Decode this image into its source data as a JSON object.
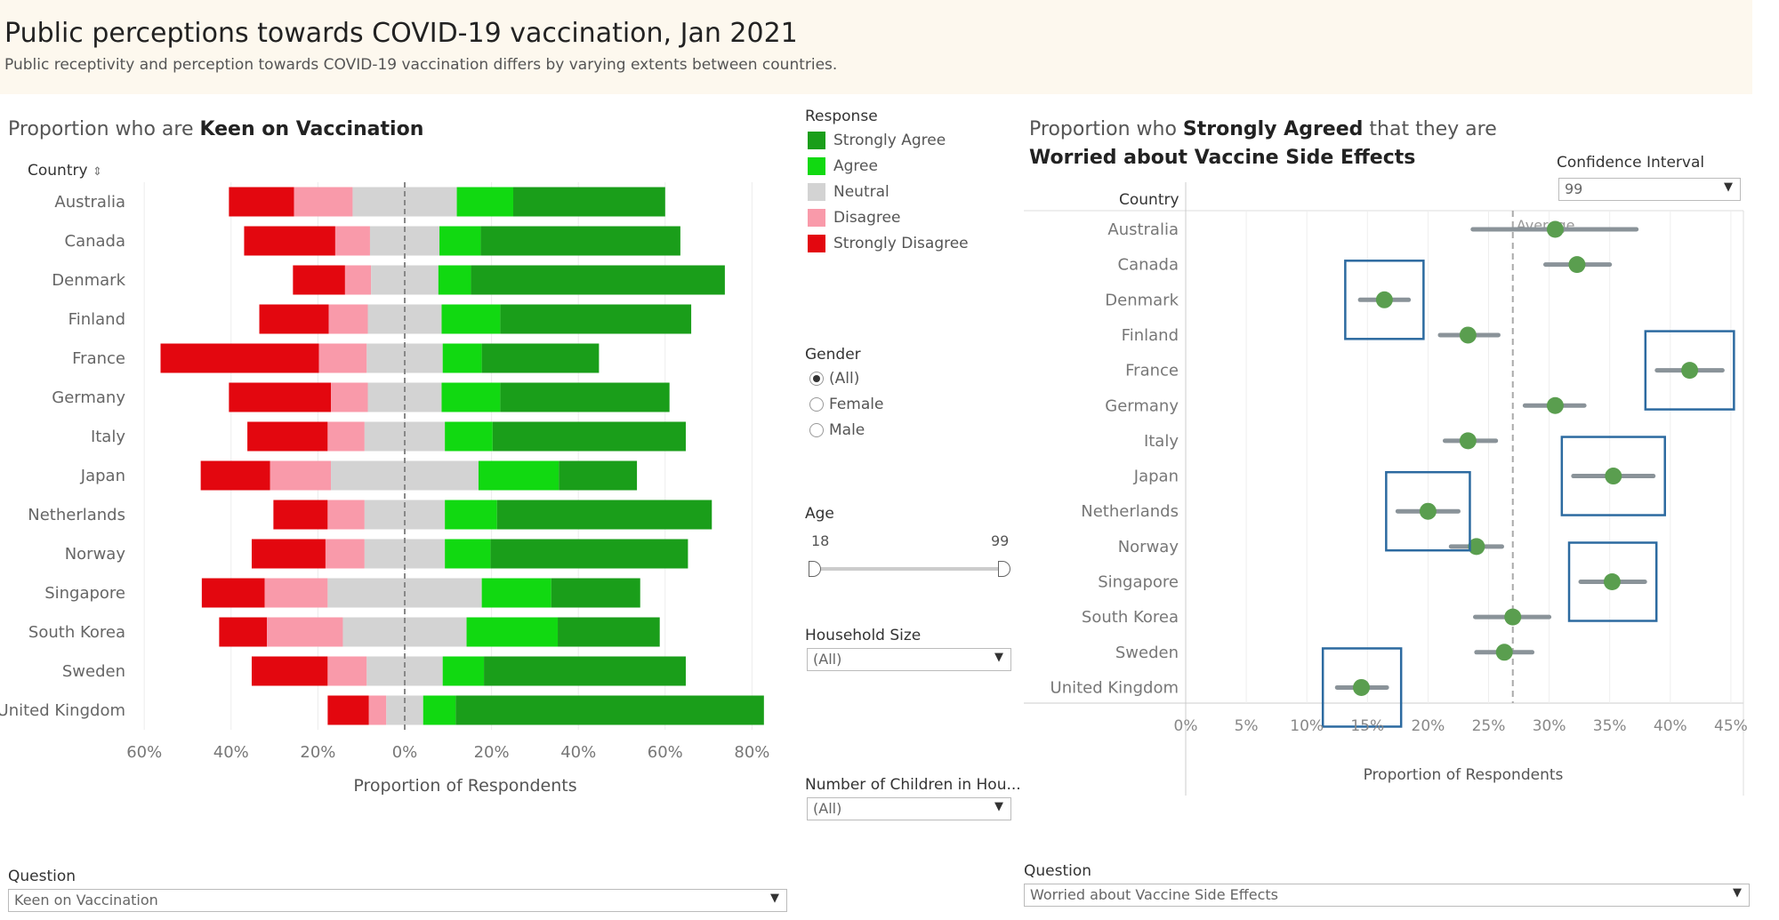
{
  "header": {
    "title": "Public perceptions towards COVID-19 vaccination, Jan 2021",
    "subtitle": "Public receptivity and perception towards COVID-19 vaccination differs by varying extents between countries."
  },
  "left_panel": {
    "title_prefix": "Proportion who are ",
    "title_bold": "Keen on Vaccination",
    "country_header": "Country",
    "sort_icon": "sort-icon",
    "question_label": "Question",
    "question_value": "Keen on Vaccination"
  },
  "filters": {
    "response_label": "Response",
    "gender_label": "Gender",
    "gender_options": [
      "(All)",
      "Female",
      "Male"
    ],
    "gender_selected": "(All)",
    "age_label": "Age",
    "age_min": "18",
    "age_max": "99",
    "household_label": "Household Size",
    "household_value": "(All)",
    "children_label": "Number of Children in Hou...",
    "children_value": "(All)"
  },
  "right_panel": {
    "title_prefix": "Proportion who ",
    "title_bold1": "Strongly Agreed",
    "title_mid": " that they are",
    "title_bold2": "Worried about Vaccine Side Effects",
    "ci_label": "Confidence Interval",
    "ci_value": "99",
    "country_header": "Country",
    "question_label": "Question",
    "question_value": "Worried about Vaccine Side Effects"
  },
  "chart_data": [
    {
      "type": "bar",
      "subtype": "diverging-stacked",
      "title": "Proportion who are Keen on Vaccination",
      "xlabel": "Proportion of Respondents",
      "ylabel": "Country",
      "xlim": [
        -0.6,
        0.8
      ],
      "tick_values": [
        -0.6,
        -0.4,
        -0.2,
        0,
        0.2,
        0.4,
        0.6,
        0.8
      ],
      "tick_labels": [
        "60%",
        "40%",
        "20%",
        "0%",
        "20%",
        "40%",
        "60%",
        "80%"
      ],
      "legend_title": "Response",
      "legend_position": "right",
      "series_colors": {
        "Strongly Agree": "#1a9e1a",
        "Agree": "#11d911",
        "Neutral": "#d3d3d3",
        "Disagree": "#f99aaa",
        "Strongly Disagree": "#e3070f"
      },
      "legend_order": [
        "Strongly Agree",
        "Agree",
        "Neutral",
        "Disagree",
        "Strongly Disagree"
      ],
      "categories": [
        "Australia",
        "Canada",
        "Denmark",
        "Finland",
        "France",
        "Germany",
        "Italy",
        "Japan",
        "Netherlands",
        "Norway",
        "Singapore",
        "South Korea",
        "Sweden",
        "United Kingdom"
      ],
      "series": [
        {
          "name": "Strongly Disagree",
          "values": [
            0.15,
            0.21,
            0.12,
            0.16,
            0.365,
            0.235,
            0.185,
            0.16,
            0.125,
            0.17,
            0.145,
            0.11,
            0.175,
            0.095
          ]
        },
        {
          "name": "Disagree",
          "values": [
            0.135,
            0.08,
            0.06,
            0.09,
            0.11,
            0.085,
            0.085,
            0.14,
            0.085,
            0.09,
            0.145,
            0.175,
            0.09,
            0.04
          ]
        },
        {
          "name": "Neutral",
          "values": [
            0.24,
            0.16,
            0.155,
            0.17,
            0.175,
            0.17,
            0.185,
            0.34,
            0.185,
            0.185,
            0.355,
            0.285,
            0.175,
            0.085
          ]
        },
        {
          "name": "Agree",
          "values": [
            0.13,
            0.095,
            0.075,
            0.135,
            0.09,
            0.135,
            0.11,
            0.185,
            0.12,
            0.105,
            0.16,
            0.21,
            0.095,
            0.075
          ]
        },
        {
          "name": "Strongly Agree",
          "values": [
            0.35,
            0.46,
            0.585,
            0.44,
            0.27,
            0.39,
            0.445,
            0.18,
            0.495,
            0.455,
            0.205,
            0.235,
            0.465,
            0.71
          ]
        }
      ]
    },
    {
      "type": "scatter",
      "subtype": "dot-with-error-bars",
      "title": "Proportion who Strongly Agreed that they are Worried about Vaccine Side Effects",
      "xlabel": "Proportion of Respondents",
      "ylabel": "Country",
      "xlim": [
        0,
        0.46
      ],
      "tick_values": [
        0,
        0.05,
        0.1,
        0.15,
        0.2,
        0.25,
        0.3,
        0.35,
        0.4,
        0.45
      ],
      "tick_labels": [
        "0%",
        "5%",
        "10%",
        "15%",
        "20%",
        "25%",
        "30%",
        "35%",
        "40%",
        "45%"
      ],
      "grid": true,
      "reference_line": {
        "label": "Average",
        "value": 0.27
      },
      "point_color": "#5a9e4f",
      "errorbar_color": "#8a9399",
      "highlight_color": "#2c6aa0",
      "categories": [
        "Australia",
        "Canada",
        "Denmark",
        "Finland",
        "France",
        "Germany",
        "Italy",
        "Japan",
        "Netherlands",
        "Norway",
        "Singapore",
        "South Korea",
        "Sweden",
        "United Kingdom"
      ],
      "values": [
        0.305,
        0.323,
        0.164,
        0.233,
        0.416,
        0.305,
        0.233,
        0.353,
        0.2,
        0.24,
        0.352,
        0.27,
        0.263,
        0.145
      ],
      "ci_low": [
        0.237,
        0.297,
        0.144,
        0.21,
        0.389,
        0.28,
        0.214,
        0.32,
        0.175,
        0.219,
        0.326,
        0.239,
        0.24,
        0.125
      ],
      "ci_high": [
        0.372,
        0.35,
        0.184,
        0.258,
        0.443,
        0.329,
        0.256,
        0.386,
        0.225,
        0.261,
        0.379,
        0.3,
        0.286,
        0.166
      ],
      "highlighted": [
        "Denmark",
        "France",
        "Japan",
        "Netherlands",
        "Singapore",
        "United Kingdom"
      ]
    }
  ]
}
